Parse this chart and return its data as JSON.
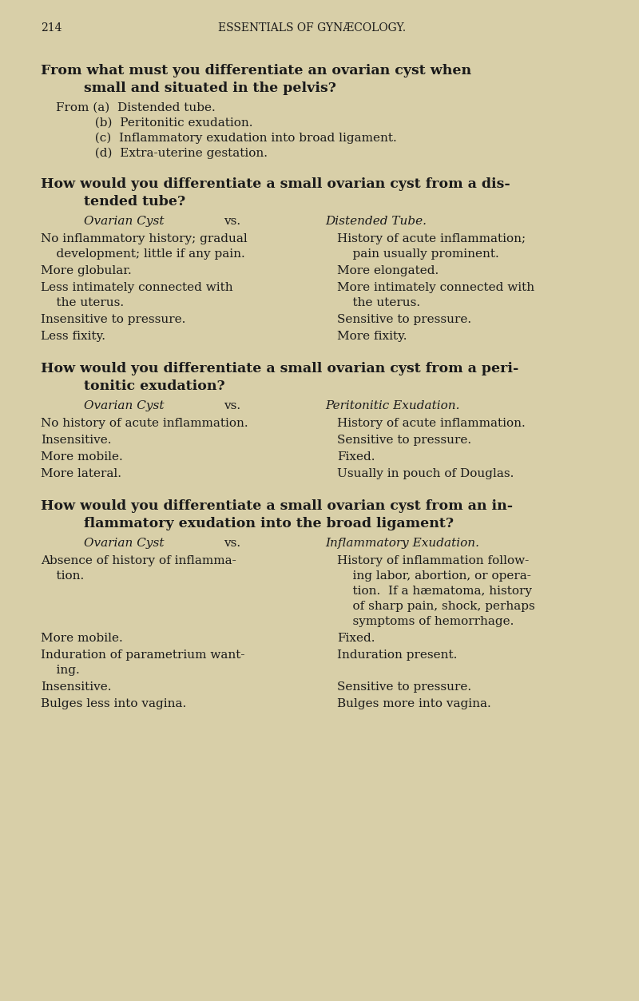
{
  "bg_color": "#d8cfa8",
  "text_color": "#1a1a1a",
  "page_number": "214",
  "header": "ESSENTIALS OF GYNÆCOLOGY.",
  "sections": [
    {
      "type": "bold_question",
      "lines": [
        "From what must you differentiate an ovarian cyst when",
        "small and situated in the pelvis?"
      ]
    },
    {
      "type": "list",
      "indent": 72,
      "items": [
        "From (a)  Distended tube.",
        "          (b)  Peritonitic exudation.",
        "          (c)  Inflammatory exudation into broad ligament.",
        "          (d)  Extra-uterine gestation."
      ]
    },
    {
      "type": "bold_question",
      "lines": [
        "How would you differentiate a small ovarian cyst from a dis-",
        "tended tube?"
      ]
    },
    {
      "type": "two_col_header",
      "left_italic": "Ovarian Cyst",
      "vs": "vs.",
      "right_italic": "Distended Tube."
    },
    {
      "type": "two_col_body",
      "rows": [
        {
          "left": "No inflammatory history; gradual\n    development; little if any pain.",
          "right": "History of acute inflammation;\n    pain usually prominent."
        },
        {
          "left": "More globular.",
          "right": "More elongated."
        },
        {
          "left": "Less intimately connected with\n    the uterus.",
          "right": "More intimately connected with\n    the uterus."
        },
        {
          "left": "Insensitive to pressure.",
          "right": "Sensitive to pressure."
        },
        {
          "left": "Less fixity.",
          "right": "More fixity."
        }
      ]
    },
    {
      "type": "bold_question",
      "lines": [
        "How would you differentiate a small ovarian cyst from a peri-",
        "tonitic exudation?"
      ]
    },
    {
      "type": "two_col_header",
      "left_italic": "Ovarian Cyst",
      "vs": "vs.",
      "right_italic": "Peritonitic Exudation."
    },
    {
      "type": "two_col_body",
      "rows": [
        {
          "left": "No history of acute inflammation.",
          "right": "History of acute inflammation."
        },
        {
          "left": "Insensitive.",
          "right": "Sensitive to pressure."
        },
        {
          "left": "More mobile.",
          "right": "Fixed."
        },
        {
          "left": "More lateral.",
          "right": "Usually in pouch of Douglas."
        }
      ]
    },
    {
      "type": "bold_question",
      "lines": [
        "How would you differentiate a small ovarian cyst from an in-",
        "flammatory exudation into the broad ligament?"
      ]
    },
    {
      "type": "two_col_header",
      "left_italic": "Ovarian Cyst",
      "vs": "vs.",
      "right_italic": "Inflammatory Exudation."
    },
    {
      "type": "two_col_body",
      "rows": [
        {
          "left": "Absence of history of inflamma-\n    tion.",
          "right": "History of inflammation follow-\n    ing labor, abortion, or opera-\n    tion.  If a hæmatoma, history\n    of sharp pain, shock, perhaps\n    symptoms of hemorrhage."
        },
        {
          "left": "More mobile.",
          "right": "Fixed."
        },
        {
          "left": "Induration of parametrium want-\n    ing.",
          "right": "Induration present."
        },
        {
          "left": "Insensitive.",
          "right": "Sensitive to pressure."
        },
        {
          "left": "Bulges less into vagina.",
          "right": "Bulges more into vagina."
        }
      ]
    }
  ]
}
